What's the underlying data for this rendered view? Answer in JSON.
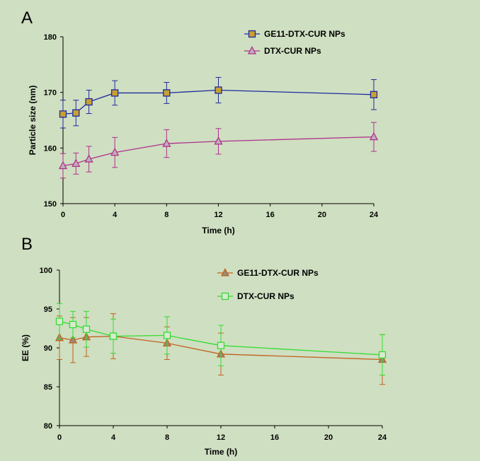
{
  "chart_data": [
    {
      "panel": "A",
      "type": "line",
      "xlabel": "Time (h)",
      "ylabel": "Particle size (nm)",
      "xlim": [
        0,
        24
      ],
      "ylim": [
        150,
        180
      ],
      "xticks": [
        0,
        4,
        8,
        12,
        16,
        20,
        24
      ],
      "yticks": [
        150,
        160,
        170,
        180
      ],
      "legend_position": "top-right",
      "series": [
        {
          "name": "GE11-DTX-CUR NPs",
          "marker": "square",
          "color": "#1f2aa0",
          "marker_fill": "#c8a030",
          "x": [
            0,
            1,
            2,
            4,
            8,
            12,
            24
          ],
          "y": [
            166.1,
            166.3,
            168.3,
            169.9,
            169.9,
            170.4,
            169.6
          ],
          "err": [
            2.5,
            2.3,
            2.1,
            2.2,
            1.9,
            2.3,
            2.7
          ]
        },
        {
          "name": "DTX-CUR NPs",
          "marker": "triangle",
          "color": "#b0308f",
          "marker_fill": "#c0b0b8",
          "x": [
            0,
            1,
            2,
            4,
            8,
            12,
            24
          ],
          "y": [
            156.8,
            157.2,
            158.0,
            159.2,
            160.8,
            161.2,
            162.0
          ],
          "err": [
            2.2,
            1.9,
            2.3,
            2.7,
            2.5,
            2.3,
            2.6
          ]
        }
      ]
    },
    {
      "panel": "B",
      "type": "line",
      "xlabel": "Time (h)",
      "ylabel": "EE (%)",
      "xlim": [
        0,
        24
      ],
      "ylim": [
        80,
        100
      ],
      "xticks": [
        0,
        4,
        8,
        12,
        16,
        20,
        24
      ],
      "yticks": [
        80,
        85,
        90,
        95,
        100
      ],
      "legend_position": "top-right",
      "series": [
        {
          "name": "GE11-DTX-CUR NPs",
          "marker": "triangle",
          "color": "#c0621f",
          "marker_fill": "#9a8a7a",
          "x": [
            0,
            1,
            2,
            4,
            8,
            12,
            24
          ],
          "y": [
            91.3,
            91.0,
            91.4,
            91.5,
            90.6,
            89.2,
            88.5
          ],
          "err": [
            2.8,
            2.9,
            2.5,
            2.9,
            2.1,
            2.7,
            3.2
          ]
        },
        {
          "name": "DTX-CUR NPs",
          "marker": "square",
          "color": "#33dd33",
          "marker_fill": "#d8ead0",
          "x": [
            0,
            1,
            2,
            4,
            8,
            12,
            24
          ],
          "y": [
            93.4,
            93.0,
            92.4,
            91.5,
            91.6,
            90.3,
            89.1
          ],
          "err": [
            2.3,
            1.7,
            2.3,
            2.2,
            2.4,
            2.6,
            2.6
          ]
        }
      ]
    }
  ]
}
